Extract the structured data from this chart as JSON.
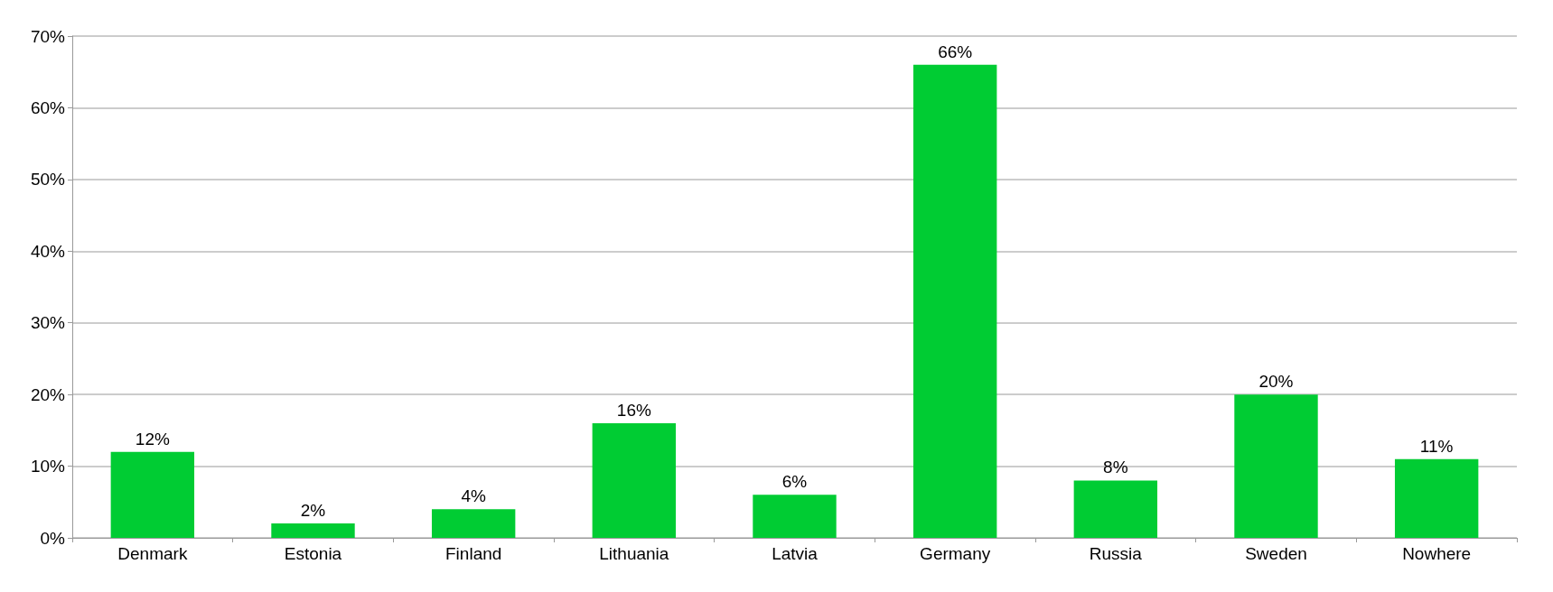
{
  "chart_data": {
    "type": "bar",
    "categories": [
      "Denmark",
      "Estonia",
      "Finland",
      "Lithuania",
      "Latvia",
      "Germany",
      "Russia",
      "Sweden",
      "Nowhere"
    ],
    "values": [
      12,
      2,
      4,
      16,
      6,
      66,
      8,
      20,
      11
    ],
    "value_labels": [
      "12%",
      "2%",
      "4%",
      "16%",
      "6%",
      "66%",
      "8%",
      "20%",
      "11%"
    ],
    "color": "#00cc33",
    "ylim": [
      0,
      70
    ],
    "yticks": [
      {
        "value": 0,
        "label": "0%"
      },
      {
        "value": 10,
        "label": "10%"
      },
      {
        "value": 20,
        "label": "20%"
      },
      {
        "value": 30,
        "label": "30%"
      },
      {
        "value": 40,
        "label": "40%"
      },
      {
        "value": 50,
        "label": "50%"
      },
      {
        "value": 60,
        "label": "60%"
      },
      {
        "value": 70,
        "label": "70%"
      }
    ],
    "grid": "y"
  }
}
